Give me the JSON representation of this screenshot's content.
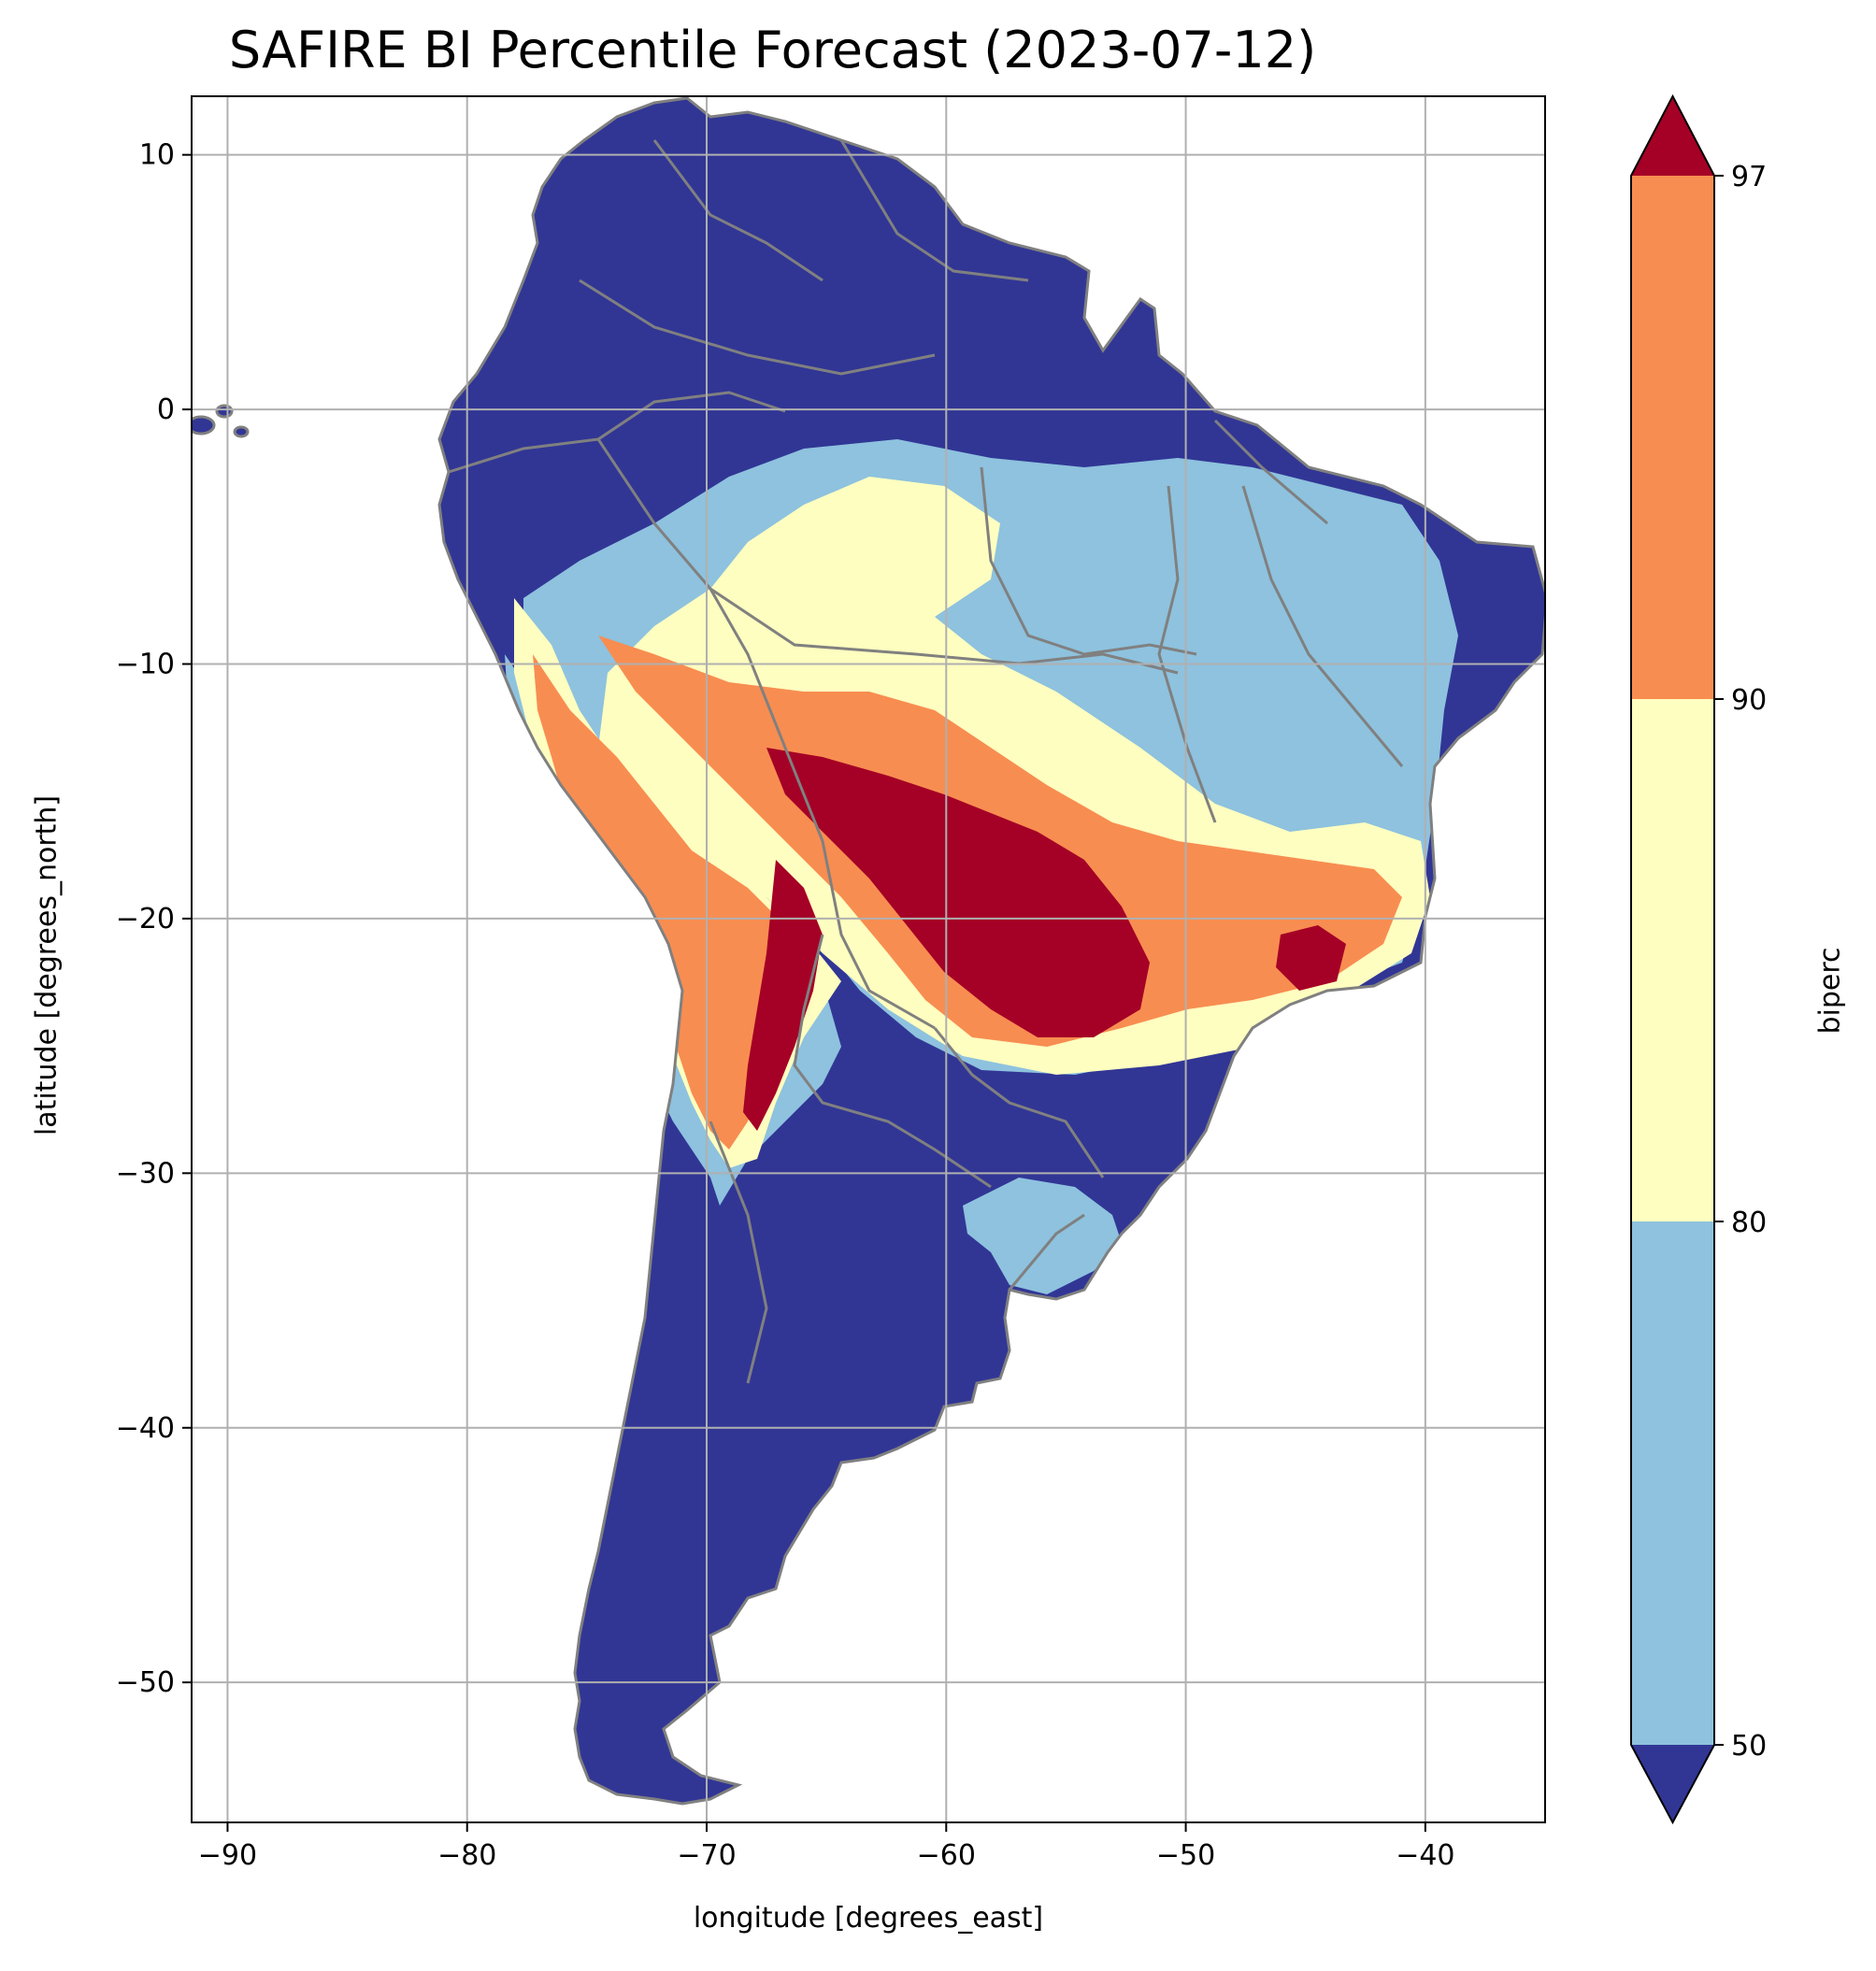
{
  "title": "SAFIRE BI Percentile Forecast (2023-07-12)",
  "xlabel": "longitude [degrees_east]",
  "ylabel": "latitude [degrees_north]",
  "colorbar": {
    "label": "biperc",
    "ticks": [
      "50",
      "80",
      "90",
      "97"
    ],
    "bins": [
      {
        "range": "<50",
        "color": "#313695"
      },
      {
        "range": "50-80",
        "color": "#8ec2de"
      },
      {
        "range": "80-90",
        "color": "#fefec0"
      },
      {
        "range": "90-97",
        "color": "#f88d51"
      },
      {
        "range": ">97",
        "color": "#a50026"
      }
    ]
  },
  "map": {
    "xlim": [
      -91.5,
      -35
    ],
    "ylim": [
      -55.5,
      12.3
    ],
    "xticks": [
      -90,
      -80,
      -70,
      -60,
      -50,
      -40
    ],
    "yticks": [
      10,
      0,
      -10,
      -20,
      -30,
      -40,
      -50
    ],
    "xtick_labels": [
      "−90",
      "−80",
      "−70",
      "−60",
      "−50",
      "−40"
    ],
    "ytick_labels": [
      "10",
      "0",
      "−10",
      "−20",
      "−30",
      "−40",
      "−50"
    ],
    "grid": true,
    "border_color": "#808080"
  }
}
